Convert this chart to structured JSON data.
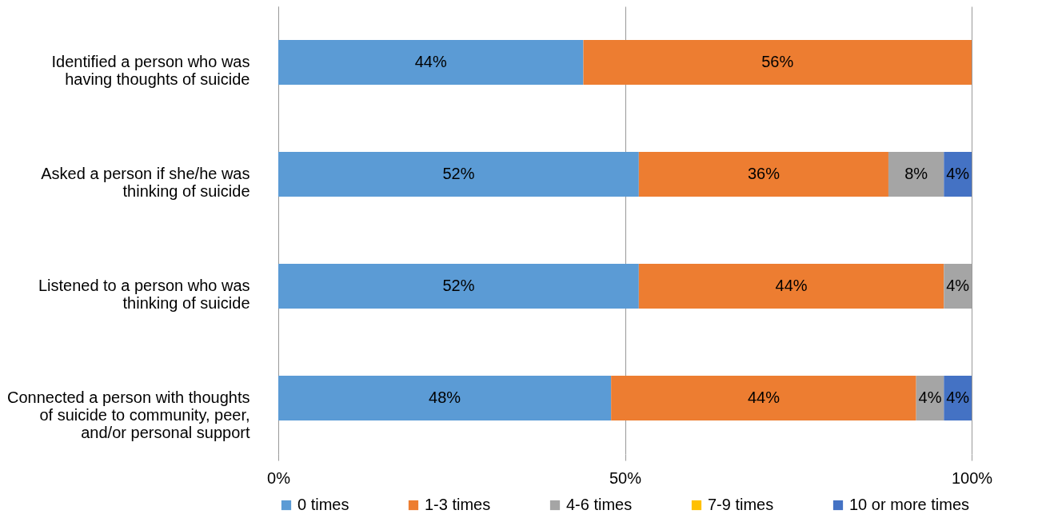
{
  "chart_data": {
    "type": "bar",
    "orientation": "horizontal",
    "stacked": true,
    "categories": [
      "Identified a person who was having thoughts of suicide",
      "Asked a person if she/he was thinking of suicide",
      "Listened to a person who was thinking of suicide",
      "Connected a person with thoughts of suicide to community, peer, and/or personal support"
    ],
    "series": [
      {
        "name": "0 times",
        "color": "#5b9bd5",
        "values": [
          44,
          52,
          52,
          48
        ],
        "value_labels": [
          "44%",
          "52%",
          "52%",
          "48%"
        ]
      },
      {
        "name": "1-3 times",
        "color": "#ed7d31",
        "values": [
          56,
          36,
          44,
          44
        ],
        "value_labels": [
          "56%",
          "36%",
          "44%",
          "44%"
        ]
      },
      {
        "name": "4-6 times",
        "color": "#a5a5a5",
        "values": [
          0,
          8,
          4,
          4
        ],
        "value_labels": [
          null,
          "8%",
          "4%",
          "4%"
        ]
      },
      {
        "name": "7-9 times",
        "color": "#ffc000",
        "values": [
          0,
          0,
          0,
          0
        ],
        "value_labels": [
          null,
          null,
          null,
          null
        ]
      },
      {
        "name": "10 or more times",
        "color": "#4472c4",
        "values": [
          0,
          4,
          0,
          4
        ],
        "value_labels": [
          null,
          "4%",
          null,
          "4%"
        ]
      }
    ],
    "xlim": [
      0,
      100
    ],
    "xticks": [
      {
        "value": 0,
        "label": "0%"
      },
      {
        "value": 50,
        "label": "50%"
      },
      {
        "value": 100,
        "label": "100%"
      }
    ],
    "grid": "x",
    "legend": "bottom"
  }
}
